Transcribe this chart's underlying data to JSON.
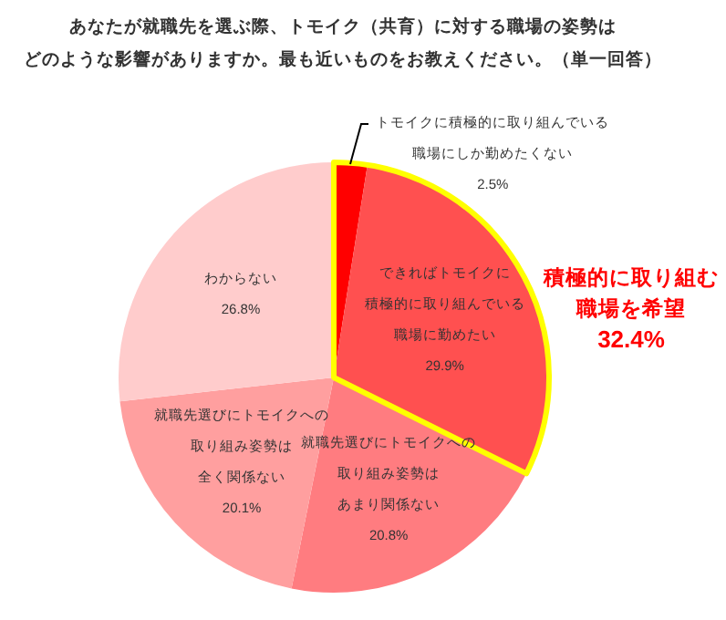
{
  "chart_data": {
    "type": "pie",
    "title": "あなたが就職先を選ぶ際、トモイク（共育）に対する職場の姿勢はどのような影響がありますか。最も近いものをお教えください。（単一回答）",
    "categories": [
      "トモイクに積極的に取り組んでいる職場にしか勤めたくない",
      "できればトモイクに積極的に取り組んでいる職場に勤めたい",
      "就職先選びにトモイクへの取り組み姿勢はあまり関係ない",
      "就職先選びにトモイクへの取り組み姿勢は全く関係ない",
      "わからない"
    ],
    "values": [
      2.5,
      29.9,
      20.8,
      20.1,
      26.8
    ],
    "value_labels": [
      "2.5%",
      "29.9%",
      "20.8%",
      "20.1%",
      "26.8%"
    ],
    "colors": [
      "#ff0000",
      "#ff5050",
      "#ff7c80",
      "#ff9f9f",
      "#ffcccc"
    ],
    "annotations": [
      "積極的に取り組む職場を希望32.4%"
    ]
  }
}
